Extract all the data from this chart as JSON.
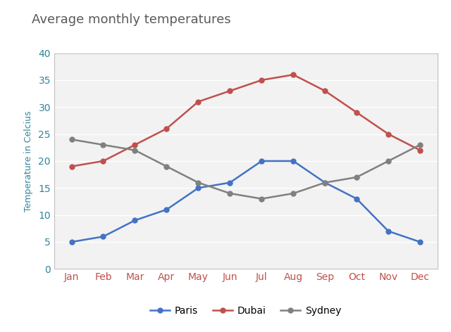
{
  "title": "Average monthly temperatures",
  "ylabel": "Temperature in Celcius",
  "months": [
    "Jan",
    "Feb",
    "Mar",
    "Apr",
    "May",
    "Jun",
    "Jul",
    "Aug",
    "Sep",
    "Oct",
    "Nov",
    "Dec"
  ],
  "paris": [
    5,
    6,
    9,
    11,
    15,
    16,
    20,
    20,
    16,
    13,
    7,
    5
  ],
  "dubai": [
    19,
    20,
    23,
    26,
    31,
    33,
    35,
    36,
    33,
    29,
    25,
    22
  ],
  "sydney": [
    24,
    23,
    22,
    19,
    16,
    14,
    13,
    14,
    16,
    17,
    20,
    23
  ],
  "paris_color": "#4472C4",
  "dubai_color": "#C0504D",
  "sydney_color": "#808080",
  "title_color": "#595959",
  "ytick_label_color": "#31849B",
  "xtick_label_color": "#C0504D",
  "ylabel_color": "#31849B",
  "ylim": [
    0,
    40
  ],
  "yticks": [
    0,
    5,
    10,
    15,
    20,
    25,
    30,
    35,
    40
  ],
  "fig_background": "#ffffff",
  "plot_bg_color": "#f2f2f2",
  "grid_color": "#ffffff",
  "title_fontsize": 13,
  "axis_label_fontsize": 9,
  "ytick_fontsize": 10,
  "xtick_fontsize": 10,
  "legend_fontsize": 10,
  "linewidth": 1.8,
  "markersize": 5
}
